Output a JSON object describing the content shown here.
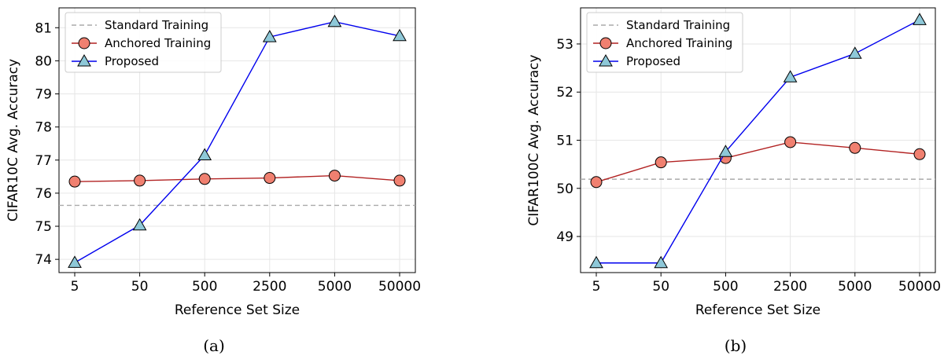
{
  "chart_data": [
    {
      "type": "line",
      "caption": "(a)",
      "xlabel": "Reference Set Size",
      "ylabel": "CIFAR10C Avg. Accuracy",
      "categories": [
        "5",
        "50",
        "500",
        "2500",
        "5000",
        "50000"
      ],
      "ylim": [
        73.6,
        81.6
      ],
      "yticks": [
        74,
        75,
        76,
        77,
        78,
        79,
        80,
        81
      ],
      "grid": true,
      "legend_position": "top-left",
      "series": [
        {
          "name": "Standard Training",
          "style": "dashed",
          "color": "#aaaaaa",
          "marker": "none",
          "values": [
            75.63,
            75.63,
            75.63,
            75.63,
            75.63,
            75.63
          ]
        },
        {
          "name": "Anchored Training",
          "style": "solid",
          "color": "#b22222",
          "marker": "circle",
          "marker_color": "#f08070",
          "values": [
            76.35,
            76.38,
            76.43,
            76.46,
            76.53,
            76.38
          ]
        },
        {
          "name": "Proposed",
          "style": "solid",
          "color": "#0000ee",
          "marker": "triangle",
          "marker_color": "#8ec8d8",
          "values": [
            73.9,
            75.03,
            77.15,
            80.72,
            81.18,
            80.75
          ]
        }
      ]
    },
    {
      "type": "line",
      "caption": "(b)",
      "xlabel": "Reference Set Size",
      "ylabel": "CIFAR100C Avg. Accuracy",
      "categories": [
        "5",
        "50",
        "500",
        "2500",
        "5000",
        "50000"
      ],
      "ylim": [
        48.25,
        53.75
      ],
      "yticks": [
        49,
        50,
        51,
        52,
        53
      ],
      "grid": true,
      "legend_position": "top-left",
      "series": [
        {
          "name": "Standard Training",
          "style": "dashed",
          "color": "#aaaaaa",
          "marker": "none",
          "values": [
            50.19,
            50.19,
            50.19,
            50.19,
            50.19,
            50.19
          ]
        },
        {
          "name": "Anchored Training",
          "style": "solid",
          "color": "#b22222",
          "marker": "circle",
          "marker_color": "#f08070",
          "values": [
            50.13,
            50.54,
            50.63,
            50.96,
            50.84,
            50.71
          ]
        },
        {
          "name": "Proposed",
          "style": "solid",
          "color": "#0000ee",
          "marker": "triangle",
          "marker_color": "#8ec8d8",
          "values": [
            48.45,
            48.45,
            50.76,
            52.31,
            52.8,
            53.5
          ]
        }
      ]
    }
  ]
}
